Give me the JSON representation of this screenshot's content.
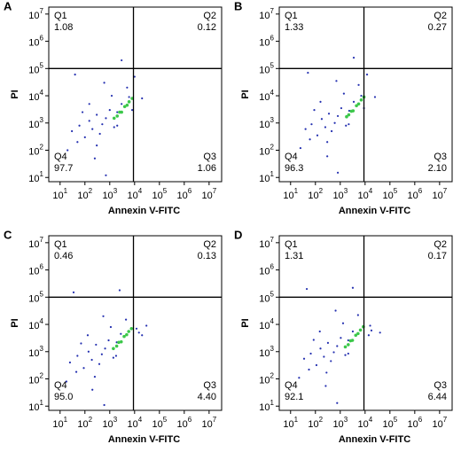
{
  "chart_data": [
    {
      "type": "scatter",
      "label": "A",
      "xlabel": "Annexin V-FITC",
      "ylabel": "PI",
      "log_x": true,
      "log_y": true,
      "xlim": [
        3.5,
        32000000
      ],
      "ylim": [
        7,
        18000000
      ],
      "xticks": [
        {
          "value": 10,
          "label": "10^1"
        },
        {
          "value": 100,
          "label": "10^2"
        },
        {
          "value": 1000,
          "label": "10^3"
        },
        {
          "value": 10000,
          "label": "10^4"
        },
        {
          "value": 100000,
          "label": "10^5"
        },
        {
          "value": 1000000,
          "label": "10^6"
        },
        {
          "value": 10000000,
          "label": "10^7"
        }
      ],
      "yticks": [
        {
          "value": 10,
          "label": "10^1"
        },
        {
          "value": 100,
          "label": "10^2"
        },
        {
          "value": 1000,
          "label": "10^3"
        },
        {
          "value": 10000,
          "label": "10^4"
        },
        {
          "value": 100000,
          "label": "10^5"
        },
        {
          "value": 1000000,
          "label": "10^6"
        },
        {
          "value": 10000000,
          "label": "10^7"
        }
      ],
      "gate": {
        "x": 9000,
        "y": 100000
      },
      "quadrants": [
        "Q1",
        "Q2",
        "Q3",
        "Q4"
      ],
      "values": [
        1.08,
        0.12,
        1.06,
        97.7
      ],
      "value_labels": [
        "1.08",
        "0.12",
        "1.06",
        "97.7"
      ],
      "points": {
        "color": "#2430b0",
        "x": [
          30,
          60,
          100,
          150,
          200,
          300,
          400,
          500,
          700,
          1000,
          1500,
          2000,
          3000,
          300,
          80,
          50,
          20,
          1200,
          5000,
          8000,
          600,
          40,
          3000,
          10000,
          20000,
          250,
          700,
          2000,
          150,
          6000
        ],
        "y": [
          500,
          800,
          300,
          1200,
          600,
          2000,
          400,
          900,
          1500,
          3000,
          700,
          2500,
          5000,
          150,
          2500,
          200,
          100,
          10000,
          20000,
          3000,
          30000,
          60000,
          200000,
          50000,
          8000,
          50,
          12,
          800,
          5000,
          9000
        ]
      },
      "core_points": {
        "color": "#3cc84a",
        "x": [
          1500,
          2500,
          4000,
          6000,
          3000,
          2000,
          5000,
          8000
        ],
        "y": [
          1500,
          2500,
          4000,
          6000,
          2500,
          1800,
          4500,
          8000
        ]
      }
    },
    {
      "type": "scatter",
      "label": "B",
      "xlabel": "Annexin V-FITC",
      "ylabel": "PI",
      "log_x": true,
      "log_y": true,
      "xlim": [
        3.5,
        32000000
      ],
      "ylim": [
        7,
        18000000
      ],
      "xticks": [
        {
          "value": 10,
          "label": "10^1"
        },
        {
          "value": 100,
          "label": "10^2"
        },
        {
          "value": 1000,
          "label": "10^3"
        },
        {
          "value": 10000,
          "label": "10^4"
        },
        {
          "value": 100000,
          "label": "10^5"
        },
        {
          "value": 1000000,
          "label": "10^6"
        },
        {
          "value": 10000000,
          "label": "10^7"
        }
      ],
      "yticks": [
        {
          "value": 10,
          "label": "10^1"
        },
        {
          "value": 100,
          "label": "10^2"
        },
        {
          "value": 1000,
          "label": "10^3"
        },
        {
          "value": 10000,
          "label": "10^4"
        },
        {
          "value": 100000,
          "label": "10^5"
        },
        {
          "value": 1000000,
          "label": "10^6"
        },
        {
          "value": 10000000,
          "label": "10^7"
        }
      ],
      "gate": {
        "x": 9000,
        "y": 100000
      },
      "quadrants": [
        "Q1",
        "Q2",
        "Q3",
        "Q4"
      ],
      "values": [
        1.33,
        0.27,
        2.1,
        96.3
      ],
      "value_labels": [
        "1.33",
        "0.27",
        "2.10",
        "96.3"
      ],
      "points": {
        "color": "#2430b0",
        "x": [
          40,
          70,
          120,
          180,
          250,
          350,
          450,
          600,
          800,
          1100,
          1700,
          2300,
          3500,
          300,
          90,
          60,
          25,
          1400,
          5500,
          9000,
          700,
          50,
          3500,
          12000,
          25000,
          300,
          800,
          2200,
          160,
          7000
        ],
        "y": [
          600,
          900,
          350,
          1400,
          700,
          2200,
          500,
          1000,
          1800,
          3500,
          800,
          2800,
          6000,
          200,
          3000,
          250,
          120,
          12000,
          25000,
          3500,
          35000,
          70000,
          250000,
          60000,
          9000,
          60,
          15,
          900,
          6000,
          10000
        ]
      },
      "core_points": {
        "color": "#3cc84a",
        "x": [
          1800,
          2800,
          4500,
          7000,
          3300,
          2200,
          5500,
          9000
        ],
        "y": [
          1700,
          2700,
          4300,
          7000,
          2800,
          2000,
          5000,
          9000
        ]
      }
    },
    {
      "type": "scatter",
      "label": "C",
      "xlabel": "Annexin V-FITC",
      "ylabel": "PI",
      "log_x": true,
      "log_y": true,
      "xlim": [
        3.5,
        32000000
      ],
      "ylim": [
        7,
        18000000
      ],
      "xticks": [
        {
          "value": 10,
          "label": "10^1"
        },
        {
          "value": 100,
          "label": "10^2"
        },
        {
          "value": 1000,
          "label": "10^3"
        },
        {
          "value": 10000,
          "label": "10^4"
        },
        {
          "value": 100000,
          "label": "10^5"
        },
        {
          "value": 1000000,
          "label": "10^6"
        },
        {
          "value": 10000000,
          "label": "10^7"
        }
      ],
      "yticks": [
        {
          "value": 10,
          "label": "10^1"
        },
        {
          "value": 100,
          "label": "10^2"
        },
        {
          "value": 1000,
          "label": "10^3"
        },
        {
          "value": 10000,
          "label": "10^4"
        },
        {
          "value": 100000,
          "label": "10^5"
        },
        {
          "value": 1000000,
          "label": "10^6"
        },
        {
          "value": 10000000,
          "label": "10^7"
        }
      ],
      "gate": {
        "x": 9000,
        "y": 100000
      },
      "quadrants": [
        "Q1",
        "Q2",
        "Q3",
        "Q4"
      ],
      "values": [
        0.46,
        0.13,
        4.4,
        95.0
      ],
      "value_labels": [
        "0.46",
        "0.13",
        "4.40",
        "95.0"
      ],
      "points": {
        "color": "#2430b0",
        "x": [
          25,
          50,
          90,
          140,
          190,
          280,
          380,
          480,
          650,
          900,
          1400,
          1900,
          2800,
          250,
          70,
          45,
          18,
          1100,
          4500,
          15000,
          550,
          35,
          2500,
          20000,
          30000,
          200,
          600,
          1800,
          130,
          12000
        ],
        "y": [
          400,
          700,
          250,
          1000,
          500,
          1800,
          350,
          800,
          1300,
          2600,
          600,
          2200,
          4500,
          120,
          2000,
          180,
          80,
          8000,
          15000,
          5000,
          20000,
          150000,
          180000,
          4000,
          9000,
          40,
          11,
          700,
          4000,
          7000
        ]
      },
      "core_points": {
        "color": "#3cc84a",
        "x": [
          1400,
          2300,
          3800,
          5800,
          2900,
          1900,
          4800,
          7500
        ],
        "y": [
          1300,
          2200,
          3600,
          5500,
          2300,
          1600,
          4200,
          7000
        ]
      }
    },
    {
      "type": "scatter",
      "label": "D",
      "xlabel": "Annexin V-FITC",
      "ylabel": "PI",
      "log_x": true,
      "log_y": true,
      "xlim": [
        3.5,
        32000000
      ],
      "ylim": [
        7,
        18000000
      ],
      "xticks": [
        {
          "value": 10,
          "label": "10^1"
        },
        {
          "value": 100,
          "label": "10^2"
        },
        {
          "value": 1000,
          "label": "10^3"
        },
        {
          "value": 10000,
          "label": "10^4"
        },
        {
          "value": 100000,
          "label": "10^5"
        },
        {
          "value": 1000000,
          "label": "10^6"
        },
        {
          "value": 10000000,
          "label": "10^7"
        }
      ],
      "yticks": [
        {
          "value": 10,
          "label": "10^1"
        },
        {
          "value": 100,
          "label": "10^2"
        },
        {
          "value": 1000,
          "label": "10^3"
        },
        {
          "value": 10000,
          "label": "10^4"
        },
        {
          "value": 100000,
          "label": "10^5"
        },
        {
          "value": 1000000,
          "label": "10^6"
        },
        {
          "value": 10000000,
          "label": "10^7"
        }
      ],
      "gate": {
        "x": 9000,
        "y": 100000
      },
      "quadrants": [
        "Q1",
        "Q2",
        "Q3",
        "Q4"
      ],
      "values": [
        1.31,
        0.17,
        6.44,
        92.1
      ],
      "value_labels": [
        "1.31",
        "0.17",
        "6.44",
        "92.1"
      ],
      "points": {
        "color": "#2430b0",
        "x": [
          35,
          65,
          110,
          160,
          220,
          320,
          420,
          550,
          750,
          1050,
          1600,
          2100,
          3200,
          280,
          85,
          55,
          22,
          1300,
          5200,
          14000,
          650,
          45,
          3200,
          18000,
          40000,
          260,
          750,
          2100,
          150,
          16000
        ],
        "y": [
          550,
          850,
          320,
          1300,
          650,
          2100,
          450,
          950,
          1600,
          3200,
          750,
          2600,
          5500,
          170,
          2700,
          220,
          110,
          11000,
          22000,
          4000,
          32000,
          200000,
          220000,
          6000,
          5000,
          55,
          13,
          850,
          5500,
          9000
        ]
      },
      "core_points": {
        "color": "#3cc84a",
        "x": [
          1600,
          2600,
          4200,
          6500,
          3100,
          2100,
          5200,
          8500
        ],
        "y": [
          1500,
          2500,
          4000,
          6200,
          2600,
          1800,
          4600,
          8200
        ]
      }
    }
  ]
}
